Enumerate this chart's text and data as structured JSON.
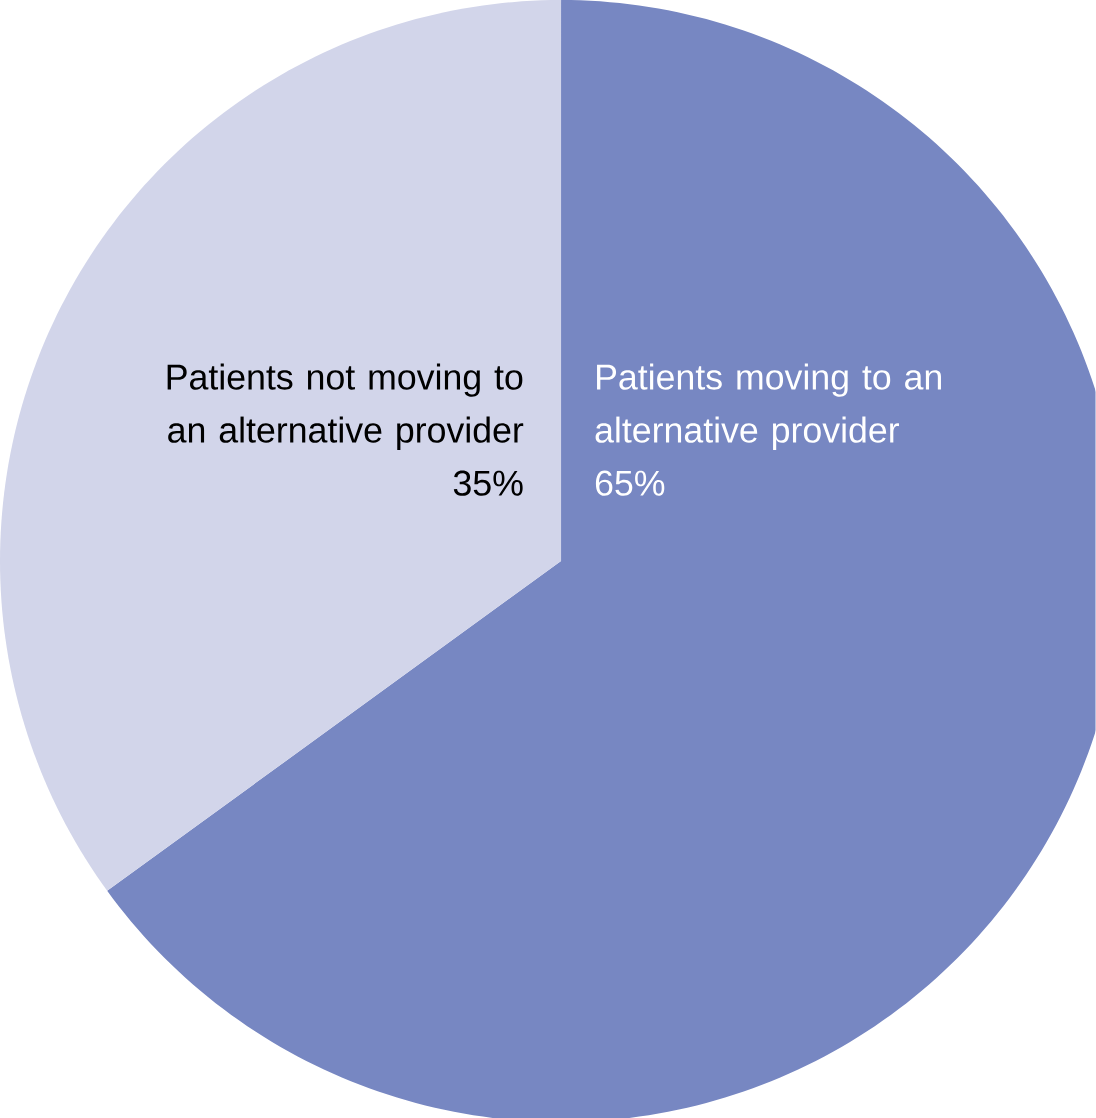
{
  "chart_data": {
    "type": "pie",
    "categories": [
      "Patients moving to an alternative provider",
      "Patients not moving to an alternative provider"
    ],
    "values": [
      65,
      35
    ],
    "value_labels": [
      "65%",
      "35%"
    ],
    "colors": [
      "#7787c2",
      "#d2d5ea"
    ]
  }
}
